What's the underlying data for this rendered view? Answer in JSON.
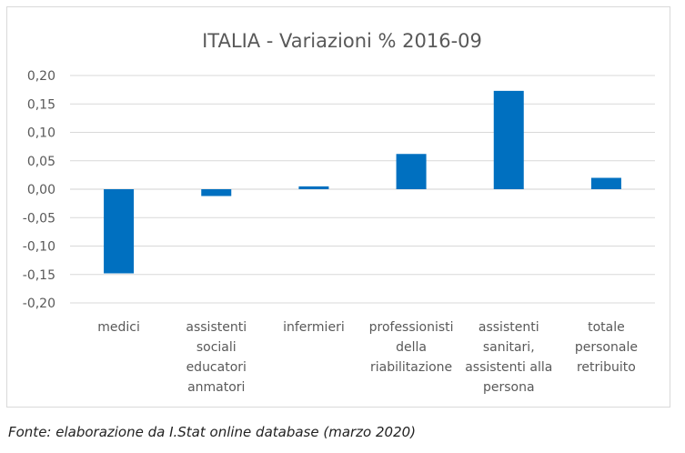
{
  "chart_data": {
    "type": "bar",
    "title": "ITALIA - Variazioni % 2016-09",
    "categories": [
      [
        "medici"
      ],
      [
        "assistenti",
        "sociali",
        "educatori",
        "anmatori"
      ],
      [
        "infermieri"
      ],
      [
        "professionisti",
        "della",
        "riabilitazione"
      ],
      [
        "assistenti",
        "sanitari,",
        "assistenti alla",
        "persona"
      ],
      [
        "totale",
        "personale",
        "retribuito"
      ]
    ],
    "values": [
      -0.148,
      -0.012,
      0.005,
      0.062,
      0.173,
      0.02
    ],
    "ylim": [
      -0.2,
      0.2
    ],
    "yticks": [
      "0,20",
      "0,15",
      "0,10",
      "0,05",
      "0,00",
      "-0,05",
      "-0,10",
      "-0,15",
      "-0,20"
    ],
    "ytick_values": [
      0.2,
      0.15,
      0.1,
      0.05,
      0.0,
      -0.05,
      -0.1,
      -0.15,
      -0.2
    ],
    "bar_color": "#0070c0",
    "grid": true,
    "legend": "none"
  },
  "caption": "Fonte: elaborazione da I.Stat online database (marzo 2020)"
}
